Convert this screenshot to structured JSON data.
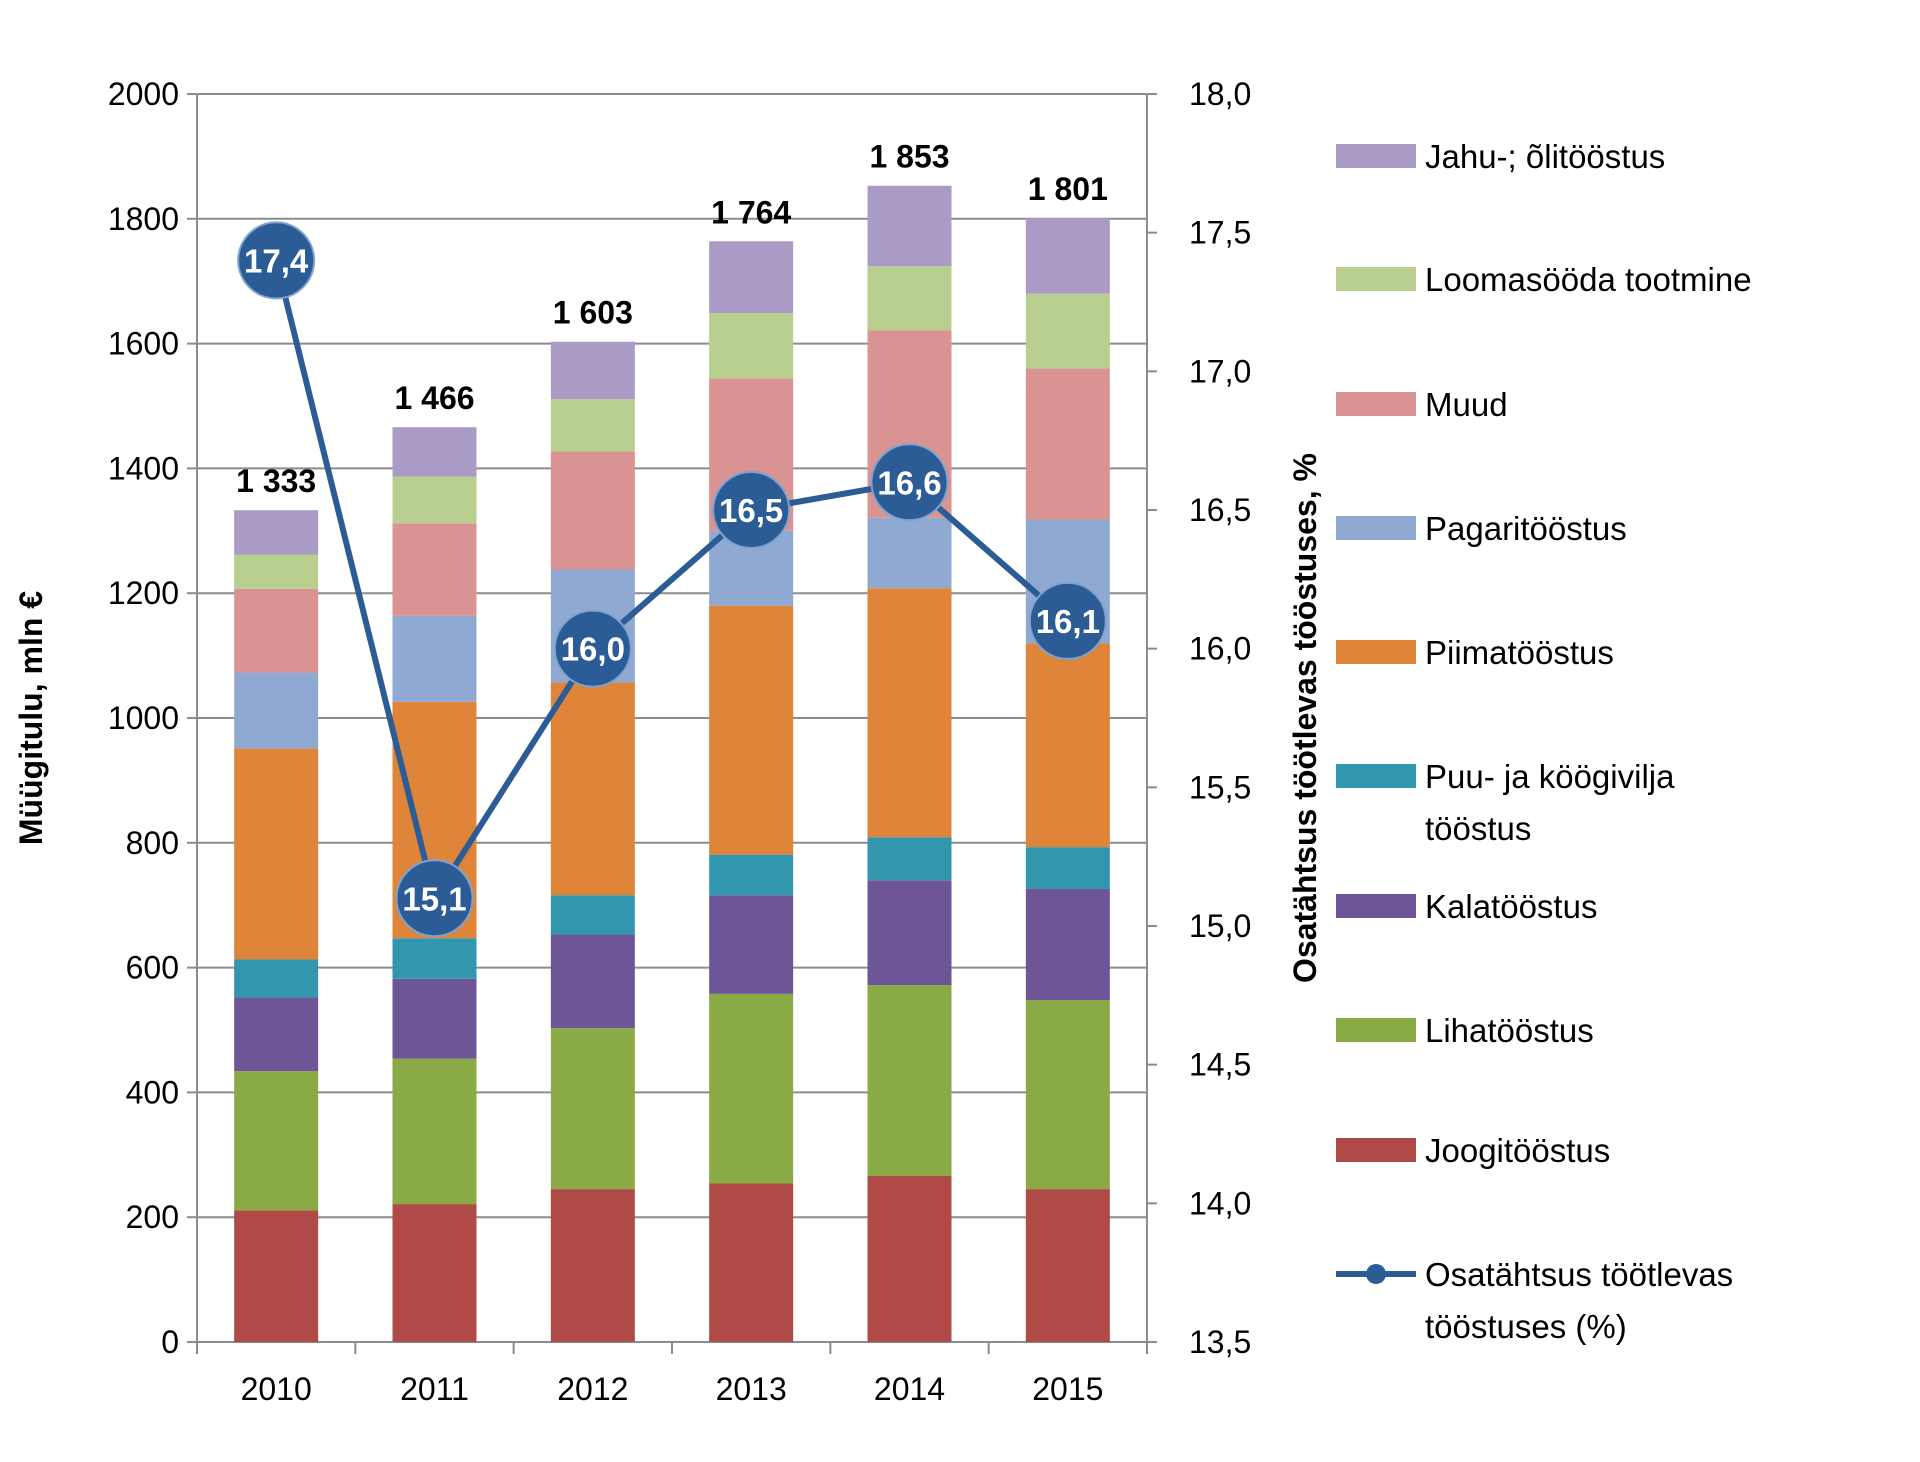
{
  "chart_data": {
    "type": "bar",
    "stacked": true,
    "categories": [
      "2010",
      "2011",
      "2012",
      "2013",
      "2014",
      "2015"
    ],
    "ylabel": "Müügitulu, mln €",
    "ylim": [
      0,
      2000
    ],
    "yticks": [
      "0",
      "200",
      "400",
      "600",
      "800",
      "1000",
      "1200",
      "1400",
      "1600",
      "1800",
      "2000"
    ],
    "y2label": "Osatähtsus töötlevas tööstuses, %",
    "y2lim": [
      13.5,
      18.0
    ],
    "y2ticks": [
      "13,5",
      "14,0",
      "14,5",
      "15,0",
      "15,5",
      "16,0",
      "16,5",
      "17,0",
      "17,5",
      "18,0"
    ],
    "grid": true,
    "legend_placement": "right",
    "totals": [
      "1 333",
      "1 466",
      "1 603",
      "1 764",
      "1 853",
      "1 801"
    ],
    "series": [
      {
        "name": "Joogitööstus",
        "color": "#B04A47",
        "values": [
          211,
          221,
          245,
          254,
          266,
          245
        ]
      },
      {
        "name": "Lihatööstus",
        "color": "#8AAA46",
        "values": [
          223,
          233,
          258,
          304,
          306,
          303
        ]
      },
      {
        "name": "Kalatööstus",
        "color": "#6E5597",
        "values": [
          118,
          128,
          150,
          158,
          168,
          178
        ]
      },
      {
        "name": "Puu- ja köögivilja tööstus",
        "color": "#3296AE",
        "values": [
          61,
          65,
          63,
          65,
          69,
          67
        ]
      },
      {
        "name": "Piimatööstus",
        "color": "#DE853A",
        "values": [
          338,
          379,
          341,
          399,
          399,
          327
        ]
      },
      {
        "name": "Pagaritööstus",
        "color": "#8FA9D3",
        "values": [
          122,
          138,
          181,
          120,
          113,
          198
        ]
      },
      {
        "name": "Muud",
        "color": "#D99392",
        "values": [
          134,
          148,
          189,
          244,
          300,
          242
        ]
      },
      {
        "name": "Loomasööda tootmine",
        "color": "#B9CF8F",
        "values": [
          55,
          75,
          84,
          105,
          103,
          120
        ]
      },
      {
        "name": "Jahu-; õlitööstus",
        "color": "#A99BC6",
        "values": [
          71,
          79,
          92,
          115,
          129,
          121
        ]
      }
    ],
    "line_series": {
      "name": "Osatähtsus töötlevas tööstuses (%)",
      "axis": "right",
      "color": "#2C5C96",
      "values": [
        17.4,
        15.1,
        16.0,
        16.5,
        16.6,
        16.1
      ],
      "labels": [
        "17,4",
        "15,1",
        "16,0",
        "16,5",
        "16,6",
        "16,1"
      ]
    },
    "legend_order": [
      "Jahu-; õlitööstus",
      "Loomasööda tootmine",
      "Muud",
      "Pagaritööstus",
      "Piimatööstus",
      "Puu- ja köögivilja tööstus",
      "Kalatööstus",
      "Lihatööstus",
      "Joogitööstus",
      "Osatähtsus töötlevas tööstuses (%)"
    ]
  }
}
